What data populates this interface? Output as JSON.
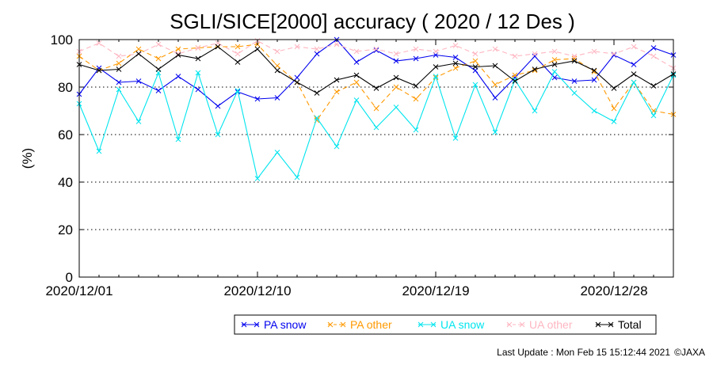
{
  "chart_data": {
    "type": "line",
    "title": "SGLI/SICE[2000] accuracy ( 2020 / 12 Des )",
    "ylabel": "(%)",
    "xlabel": "",
    "ylim": [
      0,
      100
    ],
    "yticks": [
      0,
      20,
      40,
      60,
      80,
      100
    ],
    "grid": "horizontal dotted",
    "x": [
      "2020/12/01",
      "2020/12/02",
      "2020/12/03",
      "2020/12/04",
      "2020/12/05",
      "2020/12/06",
      "2020/12/07",
      "2020/12/08",
      "2020/12/09",
      "2020/12/10",
      "2020/12/11",
      "2020/12/12",
      "2020/12/13",
      "2020/12/14",
      "2020/12/15",
      "2020/12/16",
      "2020/12/17",
      "2020/12/18",
      "2020/12/19",
      "2020/12/20",
      "2020/12/21",
      "2020/12/22",
      "2020/12/23",
      "2020/12/24",
      "2020/12/25",
      "2020/12/26",
      "2020/12/27",
      "2020/12/28",
      "2020/12/29",
      "2020/12/30",
      "2020/12/31"
    ],
    "xticks": [
      "2020/12/01",
      "2020/12/10",
      "2020/12/19",
      "2020/12/28"
    ],
    "series": [
      {
        "name": "PA snow",
        "color": "#0000ee",
        "dashed": false,
        "values": [
          77,
          88,
          82,
          82.5,
          78.5,
          84.5,
          79,
          72,
          78,
          75,
          75.5,
          84,
          94,
          100,
          90.5,
          95.5,
          91,
          92,
          93.5,
          92.5,
          87,
          75.5,
          84,
          93,
          84,
          82.5,
          83,
          93.5,
          89.5,
          96.5,
          93.5
        ]
      },
      {
        "name": "PA other",
        "color": "#ff9900",
        "dashed": true,
        "values": [
          93,
          87,
          90,
          96,
          92,
          96,
          96.5,
          97,
          97,
          98,
          89,
          82,
          66,
          78,
          82,
          71,
          80,
          75,
          84,
          88,
          91,
          81,
          85,
          87,
          91.5,
          92,
          86.5,
          71,
          82,
          70,
          68.5
        ]
      },
      {
        "name": "UA snow",
        "color": "#00e5ee",
        "dashed": false,
        "values": [
          73,
          53,
          79,
          65.5,
          86,
          58,
          86,
          60,
          78.5,
          41.5,
          52.5,
          42,
          67,
          55,
          74.5,
          63,
          71.5,
          62,
          84.5,
          58.5,
          81,
          61,
          83,
          70,
          86.5,
          77.5,
          70,
          65.5,
          82,
          68,
          85
        ]
      },
      {
        "name": "UA other",
        "color": "#ffb6c1",
        "dashed": true,
        "values": [
          95,
          98.5,
          93,
          94,
          98,
          94,
          96.5,
          98.5,
          94,
          99.5,
          95,
          97,
          96,
          98,
          95,
          96,
          94,
          96,
          95,
          97.5,
          94,
          96,
          93,
          94,
          95,
          93,
          95,
          94,
          97,
          93,
          88
        ]
      },
      {
        "name": "Total",
        "color": "#000000",
        "dashed": false,
        "values": [
          89.5,
          87,
          87.5,
          94,
          87.5,
          93.5,
          92,
          97,
          90.5,
          96,
          87,
          82,
          77.5,
          83,
          85,
          79.5,
          84,
          80.5,
          88.5,
          90,
          88.5,
          89,
          82.5,
          87.5,
          89.5,
          91,
          87,
          79.5,
          85.5,
          80.5,
          85.5
        ]
      }
    ]
  },
  "footer": {
    "last_update": "Last Update : Mon Feb 15 15:12:44 2021",
    "copyright": "©JAXA"
  }
}
